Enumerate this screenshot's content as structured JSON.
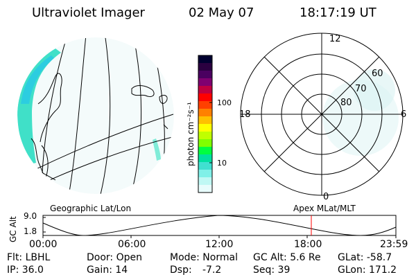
{
  "header": {
    "instrument": "Ultraviolet Imager",
    "date": "02 May 07",
    "time": "18:17:19 UT"
  },
  "colorbar": {
    "unit_label": "photon cm⁻²s⁻¹",
    "ticks": [
      "100",
      "10"
    ],
    "colors": [
      "#000030",
      "#2a0040",
      "#4a0060",
      "#800070",
      "#c00040",
      "#ff0000",
      "#ff4000",
      "#ff8000",
      "#ffc000",
      "#ffff00",
      "#c0ff00",
      "#80ff00",
      "#00ff40",
      "#00e0a0",
      "#40e0d0",
      "#80f0e8",
      "#c0f8f4",
      "#e8fcfc"
    ]
  },
  "polar": {
    "mlt_labels": {
      "top": "12",
      "left": "18",
      "right": "6",
      "bottom": "0"
    },
    "lat_labels": [
      "60",
      "70",
      "80"
    ]
  },
  "timeline": {
    "left_title": "Geographic Lat/Lon",
    "right_title": "Apex MLat/MLT",
    "y_axis_label": "GC Alt",
    "y_ticks": [
      "9.0",
      "1.8"
    ],
    "x_ticks": [
      "00:00",
      "06:00",
      "12:00",
      "18:00",
      "23:59"
    ],
    "marker_color": "#ff0000"
  },
  "info": {
    "row1": [
      "Flt: LBHL",
      "Door: Open",
      "Mode: Normal",
      "GC Alt: 5.6 Re",
      "GLat: -58.7"
    ],
    "row2": [
      "IP: 36.0",
      "Gain: 14",
      "Dsp:",
      "-7.2",
      "Seq: 39",
      "GLon: 171.2"
    ]
  }
}
